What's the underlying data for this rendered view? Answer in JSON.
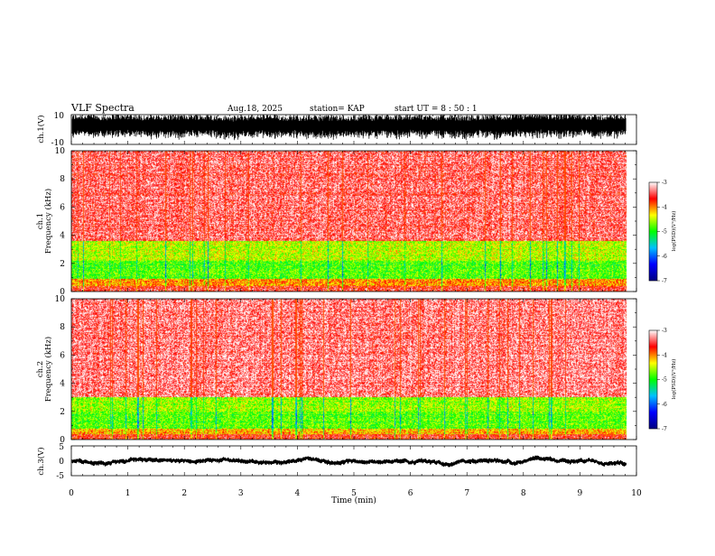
{
  "header": {
    "title": "VLF Spectra",
    "date": "Aug.18, 2025",
    "station": "station= KAP",
    "start_ut": "start  UT =   8 : 50 : 1"
  },
  "chart_data": {
    "type": "heatmap",
    "x_axis": {
      "label": "Time  (min)",
      "range": [
        0,
        10
      ],
      "ticks": [
        "0",
        "1",
        "2",
        "3",
        "4",
        "5",
        "6",
        "7",
        "8",
        "9",
        "10"
      ],
      "data_end": 9.82
    },
    "panels": [
      {
        "name": "ch1-waveform",
        "type": "line",
        "ylabel": "ch.1(V)",
        "ylim": [
          -10,
          10
        ],
        "tick_labels": [
          "10",
          "-10"
        ],
        "baseline": 2.5,
        "amplitude": 6.5
      },
      {
        "name": "ch1-spectrogram",
        "type": "heatmap",
        "ylabel_line1": "ch.1",
        "ylabel_line2": "Frequency (kHz)",
        "ylim": [
          0,
          10
        ],
        "tick_labels": [
          "0",
          "2",
          "4",
          "6",
          "8",
          "10"
        ],
        "bands": [
          {
            "f0": 0.0,
            "f1": 0.4,
            "level": 0.85
          },
          {
            "f0": 0.4,
            "f1": 0.9,
            "level": 0.75
          },
          {
            "f0": 0.9,
            "f1": 2.2,
            "level": 0.55
          },
          {
            "f0": 2.2,
            "f1": 3.6,
            "level": 0.62
          },
          {
            "f0": 3.6,
            "f1": 10.0,
            "level": 0.9
          }
        ],
        "colorbar": {
          "ticks": [
            "-3",
            "-4",
            "-5",
            "-6",
            "-7"
          ],
          "label": "log(PSD)(V²/Hz)"
        }
      },
      {
        "name": "ch2-spectrogram",
        "type": "heatmap",
        "ylabel_line1": "ch.2",
        "ylabel_line2": "Frequency (kHz)",
        "ylim": [
          0,
          10
        ],
        "tick_labels": [
          "0",
          "2",
          "4",
          "6",
          "8",
          "10"
        ],
        "bands": [
          {
            "f0": 0.0,
            "f1": 0.4,
            "level": 0.85
          },
          {
            "f0": 0.4,
            "f1": 0.8,
            "level": 0.72
          },
          {
            "f0": 0.8,
            "f1": 2.0,
            "level": 0.55
          },
          {
            "f0": 2.0,
            "f1": 3.0,
            "level": 0.6
          },
          {
            "f0": 3.0,
            "f1": 10.0,
            "level": 0.92
          }
        ],
        "colorbar": {
          "ticks": [
            "-3",
            "-4",
            "-5",
            "-6",
            "-7"
          ],
          "label": "log(PSD)(V²/Hz)"
        }
      },
      {
        "name": "ch3-waveform",
        "type": "line",
        "ylabel": "ch.3(V)",
        "ylim": [
          -5,
          5
        ],
        "tick_labels": [
          "5",
          "0",
          "-5"
        ],
        "baseline": 0,
        "amplitude": 0.6
      }
    ],
    "colormap": [
      "#000080",
      "#0000ff",
      "#00c0ff",
      "#00ff00",
      "#ffff00",
      "#ff0000",
      "#ffffff"
    ]
  }
}
